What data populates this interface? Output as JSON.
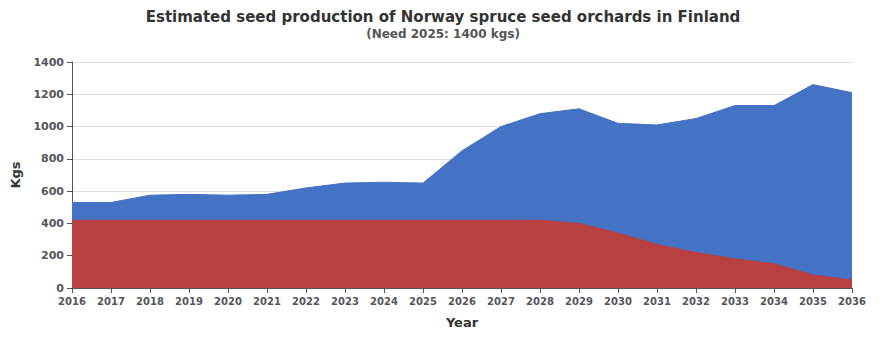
{
  "chart_data": {
    "type": "area",
    "title": "Estimated seed production of Norway spruce seed orchards in Finland",
    "subtitle": "(Need 2025: 1400 kgs)",
    "xlabel": "Year",
    "ylabel": "Kgs",
    "x": [
      2016,
      2017,
      2018,
      2019,
      2020,
      2021,
      2022,
      2023,
      2024,
      2025,
      2026,
      2027,
      2028,
      2029,
      2030,
      2031,
      2032,
      2033,
      2034,
      2035,
      2036
    ],
    "series": [
      {
        "color": "#4472C4",
        "values": [
          530,
          530,
          575,
          580,
          575,
          580,
          620,
          650,
          655,
          650,
          850,
          1000,
          1080,
          1110,
          1020,
          1010,
          1050,
          1130,
          1130,
          1260,
          1210
        ]
      },
      {
        "color": "#B94040",
        "values": [
          420,
          420,
          420,
          420,
          420,
          420,
          420,
          420,
          420,
          420,
          420,
          420,
          420,
          400,
          340,
          270,
          220,
          180,
          150,
          80,
          50
        ]
      }
    ],
    "xlim": [
      2016,
      2036
    ],
    "xticks": [
      2016,
      2017,
      2018,
      2019,
      2020,
      2021,
      2022,
      2023,
      2024,
      2025,
      2026,
      2027,
      2028,
      2029,
      2030,
      2031,
      2032,
      2033,
      2034,
      2035,
      2036
    ],
    "ylim": [
      0,
      1400
    ],
    "yticks": [
      0,
      200,
      400,
      600,
      800,
      1000,
      1200,
      1400
    ],
    "grid": true,
    "stacked": false
  }
}
